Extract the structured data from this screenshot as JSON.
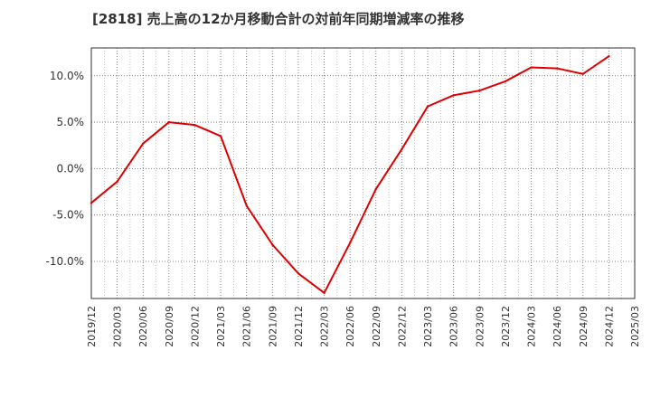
{
  "chart_data": {
    "type": "line",
    "title": "[2818]  売上高の12か月移動合計の対前年同期増減率の推移",
    "xlabel": "",
    "ylabel": "",
    "ylim": [
      -14.0,
      13.0
    ],
    "yticks": [
      10.0,
      5.0,
      0.0,
      -5.0,
      -10.0
    ],
    "ytick_labels": [
      "10.0%",
      "5.0%",
      "0.0%",
      "-5.0%",
      "-10.0%"
    ],
    "grid": true,
    "categories": [
      "2019/12",
      "2020/03",
      "2020/06",
      "2020/09",
      "2020/12",
      "2021/03",
      "2021/06",
      "2021/09",
      "2021/12",
      "2022/03",
      "2022/06",
      "2022/09",
      "2022/12",
      "2023/03",
      "2023/06",
      "2023/09",
      "2023/12",
      "2024/03",
      "2024/06",
      "2024/09",
      "2024/12",
      "2025/03"
    ],
    "series": [
      {
        "name": "対前年同期増減率",
        "color": "#dd0000",
        "values": [
          -3.7,
          -1.4,
          2.7,
          5.0,
          4.7,
          3.5,
          -4.0,
          -8.2,
          -11.3,
          -13.4,
          -8.0,
          -2.2,
          2.1,
          6.7,
          7.9,
          8.4,
          9.4,
          10.9,
          10.8,
          10.2,
          12.1,
          null
        ]
      }
    ]
  }
}
